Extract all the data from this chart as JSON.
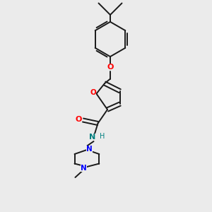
{
  "background_color": "#ebebeb",
  "bond_color": "#1a1a1a",
  "o_color": "#ff0000",
  "n_color": "#0000ff",
  "nh_color": "#008080",
  "figsize": [
    3.0,
    3.0
  ],
  "dpi": 100,
  "xlim": [
    0,
    10
  ],
  "ylim": [
    0,
    10
  ]
}
